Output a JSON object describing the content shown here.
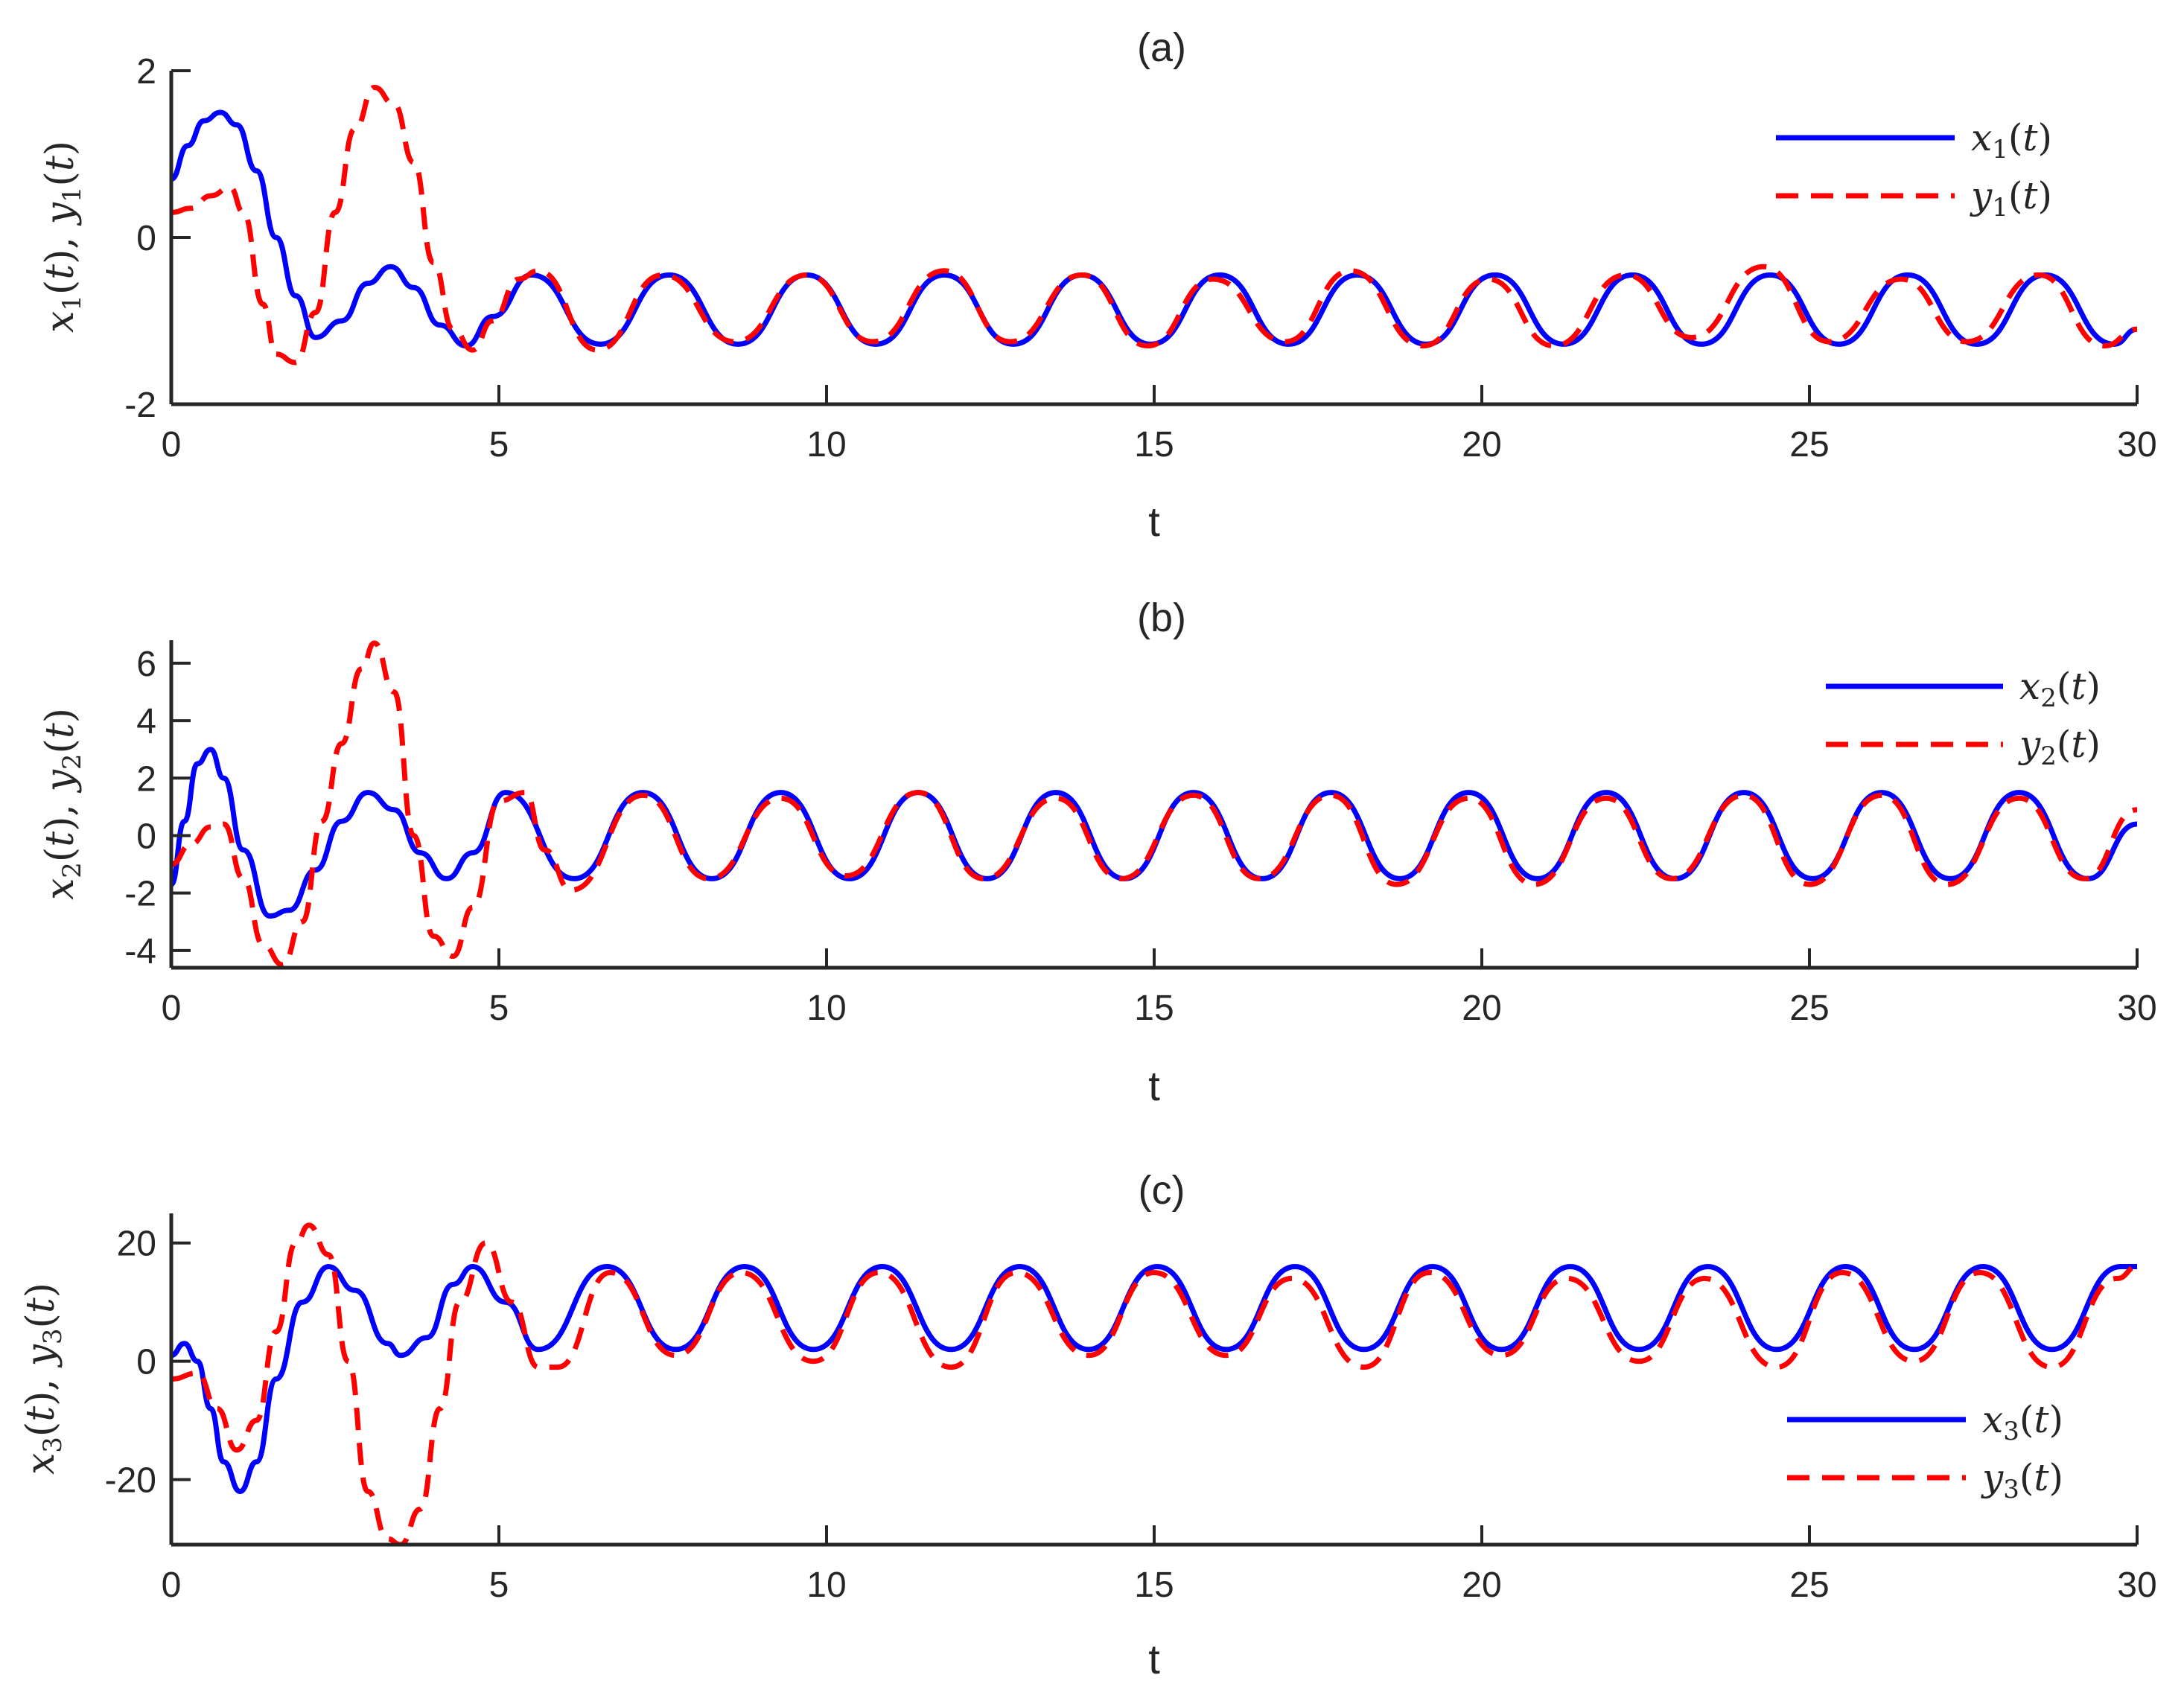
{
  "chart_data": [
    {
      "type": "line",
      "title": "(a)",
      "xlabel": "t",
      "ylabel": {
        "a": "x",
        "a_sub": "1",
        "b": "y",
        "b_sub": "1",
        "var": "t"
      },
      "xlim": [
        0,
        30
      ],
      "ylim": [
        -2,
        2
      ],
      "xticks": [
        0,
        5,
        10,
        15,
        20,
        25,
        30
      ],
      "yticks": [
        -2,
        0,
        2
      ],
      "legend_position": "top-right",
      "series": [
        {
          "name": {
            "base": "x",
            "sub": "1",
            "var": "t"
          },
          "color": "#0000ff",
          "style": "solid",
          "x": [
            0,
            0.25,
            0.5,
            0.75,
            1.0,
            1.3,
            1.6,
            1.9,
            2.2,
            2.6,
            3.0,
            3.35,
            3.7,
            4.1,
            4.5,
            4.9,
            5.5,
            6.55,
            7.6,
            8.65,
            9.7,
            10.75,
            11.8,
            12.85,
            13.9,
            14.95,
            16.0,
            17.05,
            18.1,
            19.15,
            20.2,
            21.25,
            22.3,
            23.35,
            24.4,
            25.45,
            26.5,
            27.55,
            28.6,
            29.65,
            30.0
          ],
          "y": [
            0.7,
            1.1,
            1.4,
            1.5,
            1.35,
            0.8,
            0.0,
            -0.7,
            -1.2,
            -1.0,
            -0.55,
            -0.35,
            -0.6,
            -1.05,
            -1.3,
            -0.95,
            -0.45,
            -1.28,
            -0.45,
            -1.28,
            -0.45,
            -1.28,
            -0.45,
            -1.28,
            -0.45,
            -1.28,
            -0.45,
            -1.28,
            -0.45,
            -1.28,
            -0.45,
            -1.28,
            -0.45,
            -1.28,
            -0.45,
            -1.28,
            -0.45,
            -1.28,
            -0.45,
            -1.28,
            -1.1
          ]
        },
        {
          "name": {
            "base": "y",
            "sub": "1",
            "var": "t"
          },
          "color": "#ff0000",
          "style": "dashed",
          "x": [
            0,
            0.3,
            0.6,
            0.9,
            1.1,
            1.4,
            1.6,
            1.9,
            2.2,
            2.5,
            2.8,
            3.1,
            3.4,
            3.7,
            4.0,
            4.3,
            4.6,
            4.9,
            5.3,
            5.6,
            6.5,
            7.5,
            8.6,
            9.7,
            10.7,
            11.8,
            12.8,
            13.9,
            14.9,
            15.9,
            17.0,
            18.0,
            19.1,
            20.1,
            21.1,
            22.2,
            23.2,
            24.3,
            25.3,
            26.4,
            27.4,
            28.5,
            29.5,
            30.0
          ],
          "y": [
            0.3,
            0.35,
            0.5,
            0.6,
            0.3,
            -0.8,
            -1.4,
            -1.5,
            -0.9,
            0.3,
            1.3,
            1.8,
            1.6,
            0.9,
            -0.3,
            -1.1,
            -1.35,
            -1.0,
            -0.5,
            -0.4,
            -1.35,
            -0.45,
            -1.25,
            -0.45,
            -1.25,
            -0.4,
            -1.25,
            -0.45,
            -1.3,
            -0.5,
            -1.25,
            -0.4,
            -1.3,
            -0.5,
            -1.3,
            -0.45,
            -1.2,
            -0.35,
            -1.25,
            -0.5,
            -1.25,
            -0.45,
            -1.3,
            -1.1
          ]
        }
      ]
    },
    {
      "type": "line",
      "title": "(b)",
      "xlabel": "t",
      "ylabel": {
        "a": "x",
        "a_sub": "2",
        "b": "y",
        "b_sub": "2",
        "var": "t"
      },
      "xlim": [
        0,
        30
      ],
      "ylim": [
        -4.6,
        6.8
      ],
      "xticks": [
        0,
        5,
        10,
        15,
        20,
        25,
        30
      ],
      "yticks": [
        -4,
        -2,
        0,
        2,
        4,
        6
      ],
      "legend_position": "top-right",
      "series": [
        {
          "name": {
            "base": "x",
            "sub": "2",
            "var": "t"
          },
          "color": "#0000ff",
          "style": "solid",
          "x": [
            0,
            0.2,
            0.4,
            0.6,
            0.8,
            1.1,
            1.5,
            1.8,
            2.2,
            2.6,
            3.0,
            3.4,
            3.8,
            4.2,
            4.6,
            5.1,
            6.15,
            7.2,
            8.25,
            9.3,
            10.35,
            11.4,
            12.45,
            13.5,
            14.55,
            15.6,
            16.65,
            17.7,
            18.75,
            19.8,
            20.85,
            21.9,
            22.95,
            24.0,
            25.05,
            26.1,
            27.15,
            28.2,
            29.25,
            30.0
          ],
          "y": [
            -1.7,
            0.5,
            2.5,
            3.0,
            2.0,
            -0.5,
            -2.8,
            -2.6,
            -1.2,
            0.5,
            1.5,
            0.9,
            -0.6,
            -1.5,
            -0.6,
            1.5,
            -1.5,
            1.5,
            -1.5,
            1.5,
            -1.5,
            1.5,
            -1.5,
            1.5,
            -1.5,
            1.5,
            -1.5,
            1.5,
            -1.5,
            1.5,
            -1.5,
            1.5,
            -1.5,
            1.5,
            -1.5,
            1.5,
            -1.5,
            1.5,
            -1.5,
            0.4
          ]
        },
        {
          "name": {
            "base": "y",
            "sub": "2",
            "var": "t"
          },
          "color": "#ff0000",
          "style": "dashed",
          "x": [
            0,
            0.3,
            0.6,
            0.8,
            1.1,
            1.4,
            1.7,
            2.0,
            2.3,
            2.6,
            2.9,
            3.1,
            3.4,
            3.7,
            4.0,
            4.3,
            4.6,
            5.0,
            5.4,
            5.7,
            6.1,
            7.2,
            8.2,
            9.3,
            10.3,
            11.4,
            12.4,
            13.5,
            14.5,
            15.6,
            16.6,
            17.7,
            18.7,
            19.8,
            20.8,
            21.9,
            22.9,
            24.0,
            25.0,
            26.1,
            27.1,
            28.2,
            29.2,
            30.0
          ],
          "y": [
            -1.0,
            -0.3,
            0.3,
            0.4,
            -1.5,
            -3.8,
            -4.5,
            -3.0,
            0.5,
            3.2,
            5.8,
            6.7,
            5.0,
            0.0,
            -3.5,
            -4.2,
            -2.5,
            1.2,
            1.5,
            -0.5,
            -1.9,
            1.4,
            -1.5,
            1.3,
            -1.4,
            1.5,
            -1.5,
            1.3,
            -1.5,
            1.4,
            -1.5,
            1.4,
            -1.7,
            1.3,
            -1.7,
            1.3,
            -1.5,
            1.4,
            -1.7,
            1.4,
            -1.7,
            1.3,
            -1.5,
            0.9
          ]
        }
      ]
    },
    {
      "type": "line",
      "title": "(c)",
      "xlabel": "t",
      "ylabel": {
        "a": "x",
        "a_sub": "3",
        "b": "y",
        "b_sub": "3",
        "var": "t"
      },
      "xlim": [
        0,
        30
      ],
      "ylim": [
        -31,
        25
      ],
      "xticks": [
        0,
        5,
        10,
        15,
        20,
        25,
        30
      ],
      "yticks": [
        -20,
        0,
        20
      ],
      "legend_position": "bottom-right",
      "series": [
        {
          "name": {
            "base": "x",
            "sub": "3",
            "var": "t"
          },
          "color": "#0000ff",
          "style": "solid",
          "x": [
            0,
            0.2,
            0.4,
            0.6,
            0.8,
            1.05,
            1.3,
            1.6,
            2.0,
            2.4,
            2.8,
            3.3,
            3.5,
            3.9,
            4.3,
            4.6,
            5.1,
            5.6,
            6.65,
            7.7,
            8.75,
            9.8,
            10.85,
            11.9,
            12.95,
            14.0,
            15.05,
            16.1,
            17.15,
            18.2,
            19.25,
            20.3,
            21.35,
            22.4,
            23.45,
            24.5,
            25.55,
            26.6,
            27.65,
            28.7,
            29.75,
            30.0
          ],
          "y": [
            1,
            3,
            0,
            -8,
            -17,
            -22,
            -17,
            -3,
            10,
            16,
            12,
            3,
            1,
            4,
            13,
            16,
            10,
            2,
            16,
            2,
            16,
            2,
            16,
            2,
            16,
            2,
            16,
            2,
            16,
            2,
            16,
            2,
            16,
            2,
            16,
            2,
            16,
            2,
            16,
            2,
            16,
            16
          ]
        },
        {
          "name": {
            "base": "y",
            "sub": "3",
            "var": "t"
          },
          "color": "#ff0000",
          "style": "dashed",
          "x": [
            0,
            0.4,
            0.7,
            1.0,
            1.3,
            1.6,
            1.9,
            2.1,
            2.4,
            2.7,
            3.0,
            3.3,
            3.5,
            3.8,
            4.1,
            4.4,
            4.8,
            5.2,
            5.6,
            5.9,
            6.7,
            7.7,
            8.7,
            9.8,
            10.8,
            11.9,
            12.9,
            14.0,
            15.0,
            16.1,
            17.1,
            18.2,
            19.2,
            20.3,
            21.3,
            22.4,
            23.4,
            24.5,
            25.5,
            26.6,
            27.6,
            28.7,
            29.7,
            30.0
          ],
          "y": [
            -3,
            -2,
            -8,
            -15,
            -10,
            5,
            20,
            23,
            18,
            0,
            -22,
            -30,
            -31,
            -25,
            -8,
            10,
            20,
            10,
            -1,
            -1,
            15,
            1,
            15,
            0,
            15,
            -1,
            15,
            1,
            15,
            1,
            14,
            -1,
            15,
            1,
            14,
            0,
            14,
            -1,
            15,
            0,
            15,
            -1,
            14,
            16
          ]
        }
      ]
    }
  ]
}
